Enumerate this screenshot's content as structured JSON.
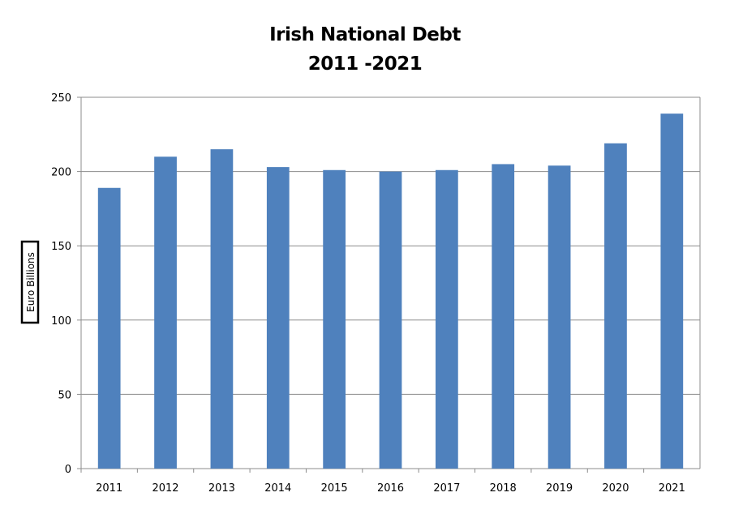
{
  "chart_data": {
    "type": "bar",
    "title_lines": [
      "Irish National Debt",
      "2011 -2021"
    ],
    "ylabel": "Euro Billions",
    "xlabel": "",
    "categories": [
      "2011",
      "2012",
      "2013",
      "2014",
      "2015",
      "2016",
      "2017",
      "2018",
      "2019",
      "2020",
      "2021"
    ],
    "values": [
      189,
      210,
      215,
      203,
      201,
      200,
      201,
      205,
      204,
      219,
      239
    ],
    "ylim": [
      0,
      250
    ],
    "yticks": [
      0,
      50,
      100,
      150,
      200,
      250
    ],
    "ytick_labels": [
      "0",
      "50",
      "100",
      "150",
      "200",
      "250"
    ],
    "grid": true,
    "legend": "none",
    "bar_color": "#4f81bd"
  }
}
